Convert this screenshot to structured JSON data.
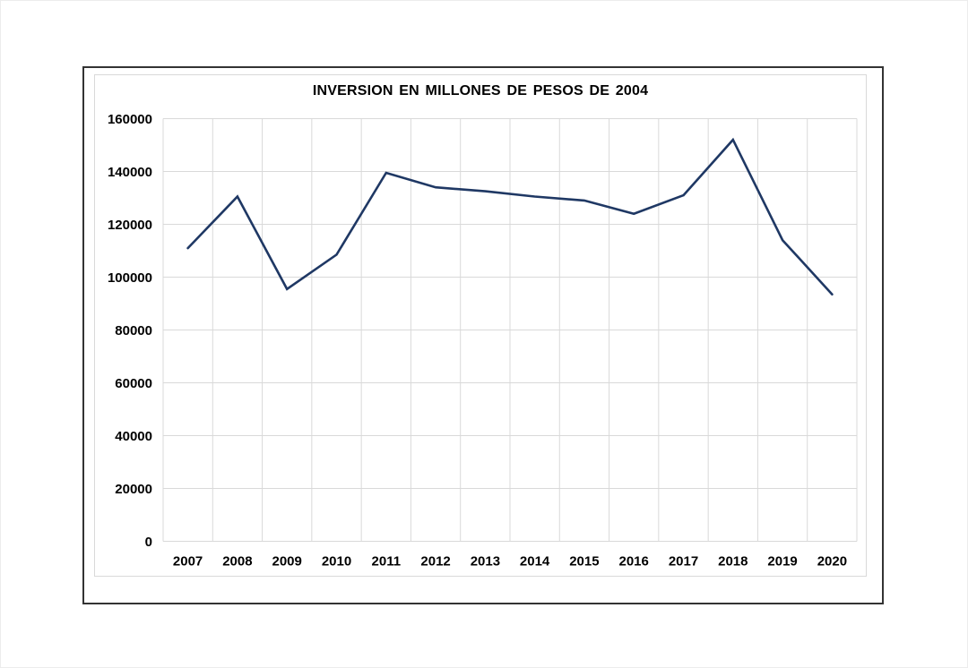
{
  "chart_data": {
    "type": "line",
    "title": "INVERSION EN MILLONES DE PESOS DE 2004",
    "categories": [
      "2007",
      "2008",
      "2009",
      "2010",
      "2011",
      "2012",
      "2013",
      "2014",
      "2015",
      "2016",
      "2017",
      "2018",
      "2019",
      "2020"
    ],
    "values": [
      111000,
      130500,
      95500,
      108500,
      139500,
      134000,
      132500,
      130500,
      129000,
      124000,
      131000,
      152000,
      114000,
      93500
    ],
    "xlabel": "",
    "ylabel": "",
    "ylim": [
      0,
      160000
    ],
    "y_tick_step": 20000,
    "y_tick_labels": [
      "0",
      "20000",
      "40000",
      "60000",
      "80000",
      "100000",
      "120000",
      "140000",
      "160000"
    ],
    "grid": true,
    "legend": false,
    "line_color": "#1f3864",
    "grid_color": "#d9d9d9",
    "tick_label_color": "#000000",
    "frame_border_color": "#333333",
    "area_border_color": "#d9d9d9"
  }
}
